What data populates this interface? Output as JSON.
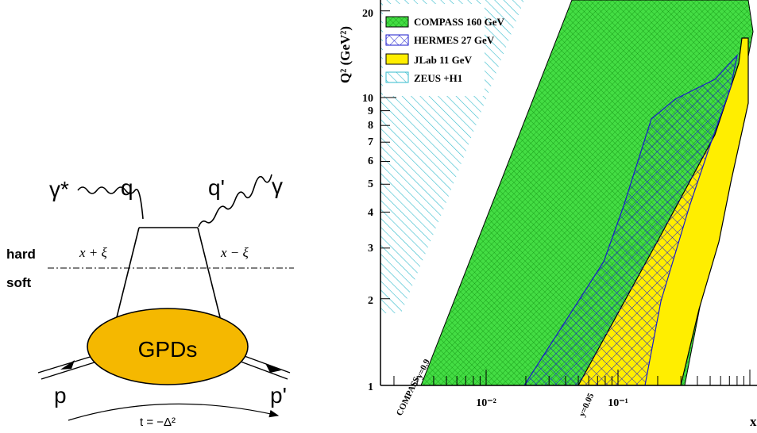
{
  "feynman": {
    "gamma_star": "γ*",
    "q": "q",
    "q_prime": "q'",
    "gamma": "γ",
    "hard": "hard",
    "soft": "soft",
    "x_plus": "x + ξ",
    "x_minus": "x − ξ",
    "gpds": "GPDs",
    "p": "p",
    "p_prime": "p'",
    "t_label": "t = −Δ²",
    "colors": {
      "blob": "#f5b800"
    }
  },
  "kinematic_plot": {
    "legend": [
      {
        "name": "COMPASS 160 GeV",
        "color": "#22cc22"
      },
      {
        "name": "HERMES 27 GeV",
        "color": "#1a1acc"
      },
      {
        "name": "JLab 11 GeV",
        "color": "#ffee00"
      },
      {
        "name": "ZEUS +H1",
        "color": "#33bbcc"
      }
    ],
    "ylabel": "Q² (GeV²)",
    "xlabel": "x",
    "y_ticks": [
      "20",
      "10",
      "9",
      "8",
      "7",
      "6",
      "5",
      "4",
      "3",
      "2",
      "1"
    ],
    "x_ticks": [
      "10⁻²",
      "10⁻¹"
    ],
    "annotations": {
      "compass_line": "COMPASS",
      "y09": "y=0.9",
      "y005": "y=0.05"
    }
  }
}
